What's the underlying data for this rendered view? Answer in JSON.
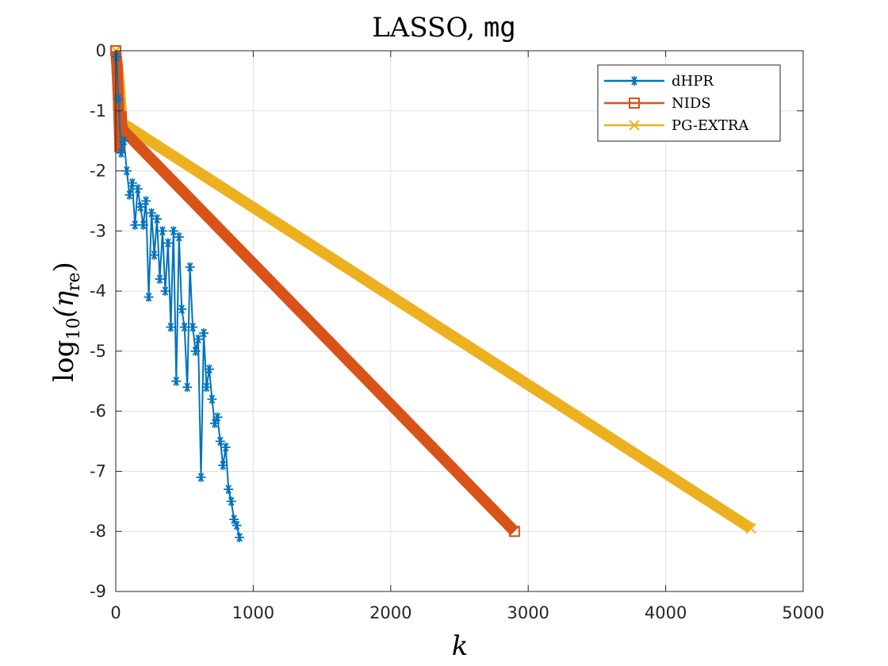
{
  "chart_data": {
    "type": "line",
    "title_main": "LASSO, ",
    "title_code": "mg",
    "xlabel": "k",
    "ylabel_prefix": "log",
    "ylabel_base": "10",
    "ylabel_var": "(η",
    "ylabel_sub": "re",
    "ylabel_close": ")",
    "xlim": [
      0,
      5000
    ],
    "ylim": [
      -9,
      0
    ],
    "x_ticks": [
      0,
      1000,
      2000,
      3000,
      4000,
      5000
    ],
    "x_tick_labels": [
      "0",
      "1000",
      "2000",
      "3000",
      "4000",
      "5000"
    ],
    "y_ticks": [
      0,
      -1,
      -2,
      -3,
      -4,
      -5,
      -6,
      -7,
      -8,
      -9
    ],
    "y_tick_labels": [
      "0",
      "-1",
      "-2",
      "-3",
      "-4",
      "-5",
      "-6",
      "-7",
      "-8",
      "-9"
    ],
    "grid": true,
    "legend_position": "top-right",
    "series": [
      {
        "name": "dHPR",
        "color": "#0072BD",
        "marker": "asterisk",
        "x": [
          5,
          20,
          40,
          60,
          80,
          100,
          120,
          140,
          160,
          180,
          200,
          220,
          240,
          260,
          280,
          300,
          320,
          340,
          360,
          380,
          400,
          420,
          440,
          460,
          480,
          500,
          520,
          540,
          560,
          580,
          600,
          620,
          640,
          660,
          680,
          700,
          720,
          740,
          760,
          780,
          800,
          820,
          840,
          860,
          880,
          900
        ],
        "y": [
          -0.1,
          -0.8,
          -1.7,
          -1.5,
          -2.0,
          -2.4,
          -2.2,
          -2.9,
          -2.3,
          -2.6,
          -2.9,
          -2.5,
          -4.1,
          -2.7,
          -3.4,
          -2.8,
          -3.8,
          -3.0,
          -4.0,
          -3.2,
          -4.6,
          -3.0,
          -5.5,
          -3.1,
          -4.3,
          -4.6,
          -5.6,
          -3.6,
          -4.6,
          -5.0,
          -4.8,
          -7.1,
          -4.7,
          -5.6,
          -5.3,
          -5.8,
          -6.2,
          -6.1,
          -6.5,
          -6.9,
          -6.6,
          -7.3,
          -7.5,
          -7.8,
          -7.9,
          -8.1
        ]
      },
      {
        "name": "NIDS",
        "color": "#D95319",
        "marker": "square",
        "x": [
          0,
          10,
          20,
          30,
          40,
          45,
          2900
        ],
        "y": [
          0,
          -0.3,
          -0.9,
          -1.6,
          -1.1,
          -1.3,
          -8.0
        ]
      },
      {
        "name": "PG-EXTRA",
        "color": "#EDB120",
        "marker": "x",
        "x": [
          0,
          10,
          20,
          30,
          40,
          45,
          4620
        ],
        "y": [
          0,
          -0.2,
          -0.4,
          -0.7,
          -1.0,
          -1.2,
          -7.95
        ]
      }
    ]
  }
}
